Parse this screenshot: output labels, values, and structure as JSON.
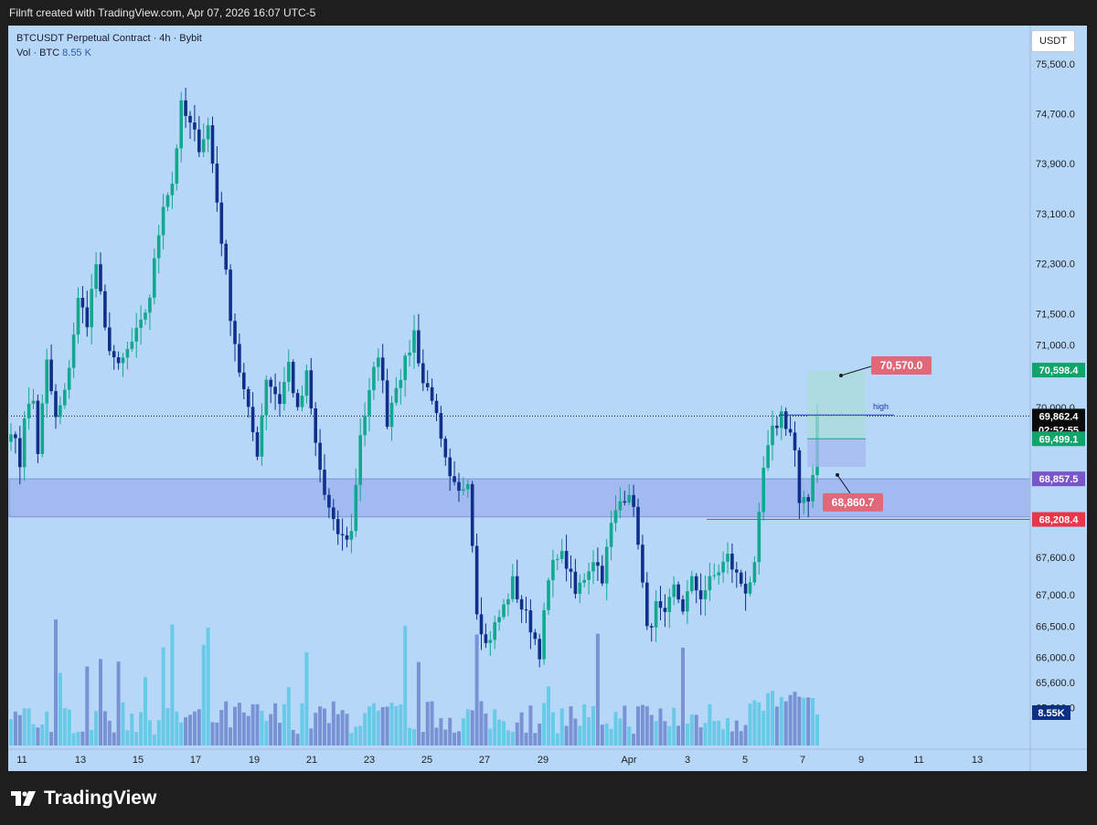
{
  "header": {
    "caption": "Filnft created with TradingView.com, Apr 07, 2026 16:07 UTC-5"
  },
  "legend": {
    "symbol": "BTCUSDT Perpetual Contract · 4h · Bybit",
    "vol_label": "Vol · BTC",
    "vol_value": "8.55 K"
  },
  "currency_button": "USDT",
  "footer": {
    "brand": "TradingView",
    "logo_icon": "tradingview-logo-icon"
  },
  "colors": {
    "background": "#b7d7f8",
    "up": "#12a88f",
    "down": "#0f2f8a",
    "vol_up": "#5bc8e4",
    "vol_down": "#6f86cc",
    "zone": "#9ab0ec",
    "support_line": "#e8374a",
    "target_label": "#e06878",
    "price_label": "#11a46a",
    "zone_label": "#7a55c8",
    "current_label": "#0b0b0b",
    "volume_label": "#0d2f86",
    "high_line": "#1d3b9a"
  },
  "chart_data": {
    "type": "candlestick",
    "symbol": "BTCUSDT Perpetual Contract",
    "timeframe": "4h",
    "exchange": "Bybit",
    "x_tick_labels": [
      "11",
      "13",
      "15",
      "17",
      "19",
      "21",
      "23",
      "25",
      "27",
      "29",
      "Apr",
      "3",
      "5",
      "7",
      "9",
      "11",
      "13"
    ],
    "y_tick_labels": [
      "75,500.0",
      "74,700.0",
      "73,900.0",
      "73,100.0",
      "72,300.0",
      "71,500.0",
      "71,000.0",
      "70,000.0",
      "67,600.0",
      "67,000.0",
      "66,500.0",
      "66,000.0",
      "65,600.0",
      "65,200.0"
    ],
    "y_ticks": [
      75500,
      74700,
      73900,
      73100,
      72300,
      71500,
      71000,
      70000,
      67600,
      67000,
      66500,
      66000,
      65600,
      65200
    ],
    "ylim": [
      64800,
      76200
    ],
    "price_labels": [
      {
        "text": "70,598.4",
        "value": 70598.4,
        "kind": "price"
      },
      {
        "text": "69,862.4",
        "value": 69862.4,
        "kind": "current"
      },
      {
        "text": "02:52:55",
        "kind": "countdown"
      },
      {
        "text": "69,499.1",
        "value": 69499.1,
        "kind": "price"
      },
      {
        "text": "68,857.5",
        "value": 68857.5,
        "kind": "zone"
      },
      {
        "text": "68,208.4",
        "value": 68208.4,
        "kind": "support"
      },
      {
        "text": "8.55K",
        "kind": "volume"
      }
    ],
    "annotations": [
      {
        "text": "70,570.0",
        "value": 70570.0
      },
      {
        "text": "68,860.7",
        "value": 68860.7
      },
      {
        "text": "high",
        "value": 69880
      }
    ],
    "zone": {
      "top": 68857.5,
      "bottom": 68250
    },
    "support_line": 68208.4,
    "current_price": 69862.4,
    "high_level": 69880,
    "projection_box": {
      "top": 70590,
      "mid": 69499.1,
      "bottom": 69050
    },
    "volume_last": "8.55K",
    "anchors": [
      [
        0,
        69700
      ],
      [
        2,
        69100
      ],
      [
        3,
        69900
      ],
      [
        5,
        70100
      ],
      [
        6,
        69300
      ],
      [
        8,
        70700
      ],
      [
        10,
        69800
      ],
      [
        12,
        70200
      ],
      [
        15,
        71700
      ],
      [
        17,
        71400
      ],
      [
        19,
        72300
      ],
      [
        21,
        71200
      ],
      [
        24,
        70600
      ],
      [
        26,
        70900
      ],
      [
        29,
        71300
      ],
      [
        31,
        71800
      ],
      [
        34,
        73300
      ],
      [
        36,
        73600
      ],
      [
        38,
        74800
      ],
      [
        40,
        74500
      ],
      [
        42,
        74200
      ],
      [
        44,
        74500
      ],
      [
        47,
        72700
      ],
      [
        49,
        71500
      ],
      [
        51,
        70600
      ],
      [
        53,
        69900
      ],
      [
        55,
        69300
      ],
      [
        57,
        70500
      ],
      [
        60,
        70100
      ],
      [
        62,
        70700
      ],
      [
        64,
        69900
      ],
      [
        66,
        70500
      ],
      [
        68,
        69400
      ],
      [
        70,
        68600
      ],
      [
        72,
        68100
      ],
      [
        74,
        67900
      ],
      [
        76,
        68000
      ],
      [
        78,
        69600
      ],
      [
        80,
        70200
      ],
      [
        82,
        70900
      ],
      [
        84,
        69800
      ],
      [
        86,
        70400
      ],
      [
        88,
        70700
      ],
      [
        90,
        71200
      ],
      [
        92,
        70400
      ],
      [
        94,
        70200
      ],
      [
        96,
        69400
      ],
      [
        98,
        68800
      ],
      [
        100,
        68600
      ],
      [
        102,
        68900
      ],
      [
        104,
        66800
      ],
      [
        106,
        66200
      ],
      [
        108,
        66500
      ],
      [
        110,
        66800
      ],
      [
        112,
        67200
      ],
      [
        114,
        66800
      ],
      [
        116,
        66500
      ],
      [
        118,
        66100
      ],
      [
        120,
        67200
      ],
      [
        122,
        67700
      ],
      [
        124,
        67500
      ],
      [
        126,
        67000
      ],
      [
        128,
        67300
      ],
      [
        130,
        67600
      ],
      [
        132,
        67300
      ],
      [
        134,
        68100
      ],
      [
        136,
        68500
      ],
      [
        138,
        68700
      ],
      [
        140,
        67900
      ],
      [
        142,
        66400
      ],
      [
        144,
        66800
      ],
      [
        146,
        66600
      ],
      [
        148,
        67100
      ],
      [
        150,
        66800
      ],
      [
        152,
        67200
      ],
      [
        154,
        67000
      ],
      [
        156,
        67200
      ],
      [
        158,
        67400
      ],
      [
        160,
        67600
      ],
      [
        162,
        67300
      ],
      [
        164,
        67100
      ],
      [
        166,
        67400
      ],
      [
        168,
        69000
      ],
      [
        170,
        69600
      ],
      [
        172,
        69900
      ],
      [
        174,
        69600
      ],
      [
        175,
        69300
      ],
      [
        176,
        68400
      ],
      [
        178,
        68500
      ],
      [
        179,
        69000
      ],
      [
        180,
        69862
      ]
    ]
  }
}
